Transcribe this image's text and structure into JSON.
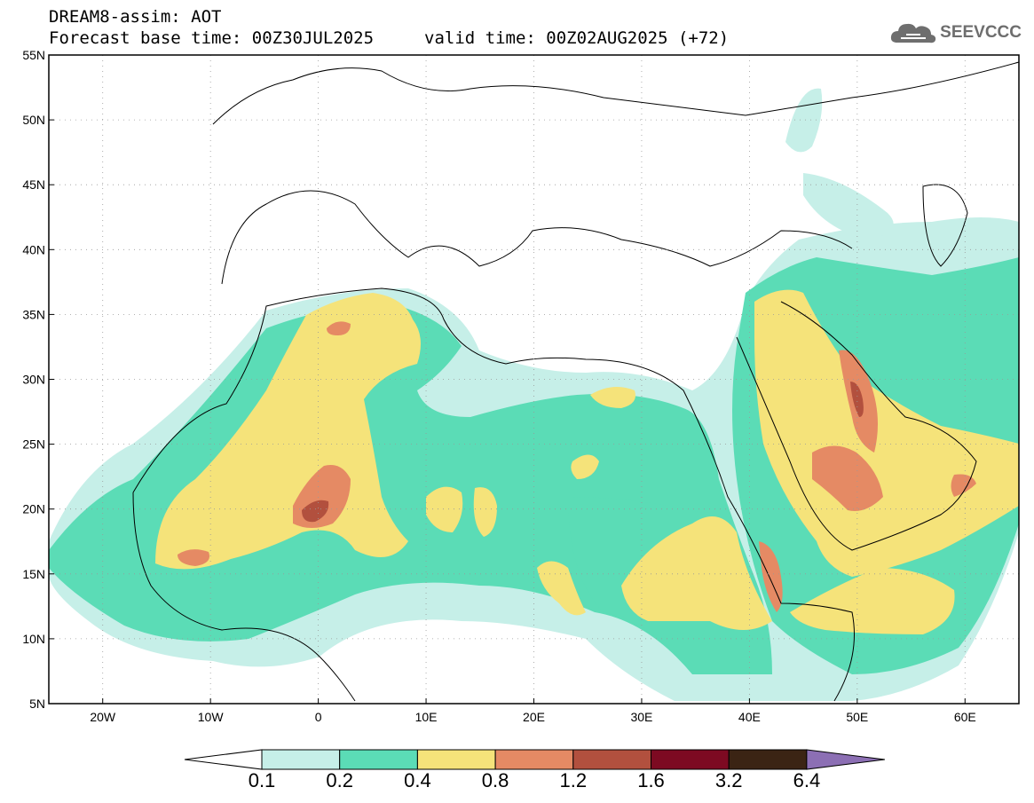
{
  "header": {
    "title_line1": "DREAM8-assim: AOT",
    "title_line2": "Forecast base time: 00Z30JUL2025",
    "valid_time": "valid time: 00Z02AUG2025 (+72)",
    "logo_text": "SEEVCCC",
    "logo_icon": "cloud-icon"
  },
  "axes": {
    "lat_labels": [
      "55N",
      "50N",
      "45N",
      "40N",
      "35N",
      "30N",
      "25N",
      "20N",
      "15N",
      "10N",
      "5N"
    ],
    "lon_labels": [
      "20W",
      "10W",
      "0",
      "10E",
      "20E",
      "30E",
      "40E",
      "50E",
      "60E"
    ]
  },
  "colorbar": {
    "labels": [
      "0.1",
      "0.2",
      "0.4",
      "0.8",
      "1.2",
      "1.6",
      "3.2",
      "6.4"
    ],
    "colors": [
      "#ffffff",
      "#c6efe8",
      "#5bdcb6",
      "#f5e37a",
      "#e58a64",
      "#b2503e",
      "#7d0a22",
      "#3b2414",
      "#8c6fb4"
    ]
  },
  "field_colors": {
    "level_1": "#c6efe8",
    "level_2": "#5bdcb6",
    "level_3": "#f5e37a",
    "level_4": "#e58a64",
    "level_5": "#b2503e"
  }
}
